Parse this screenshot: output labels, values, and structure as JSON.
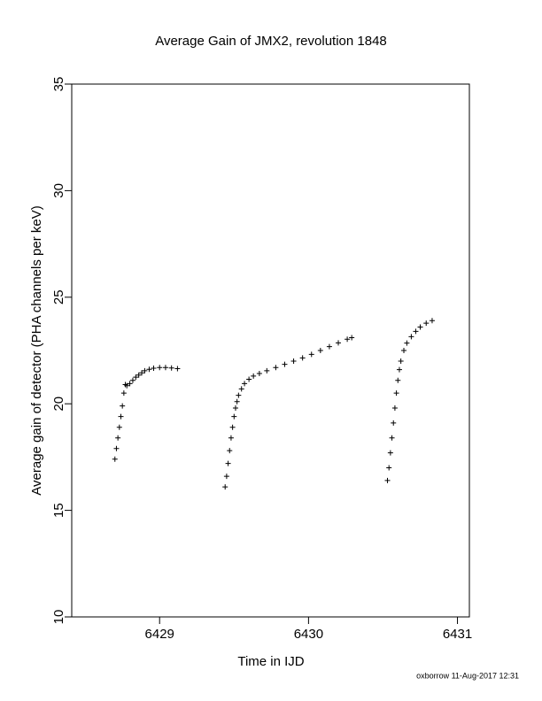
{
  "chart_data": {
    "type": "scatter",
    "title": "Average Gain of JMX2, revolution 1848",
    "x_label": "Time in IJD",
    "y_label": "Average gain of detector (PHA channels per keV)",
    "footer": "oxborrow 11-Aug-2017 12:31",
    "xlim": [
      6428.41,
      6431.08
    ],
    "ylim": [
      10,
      35
    ],
    "xticks": [
      6429,
      6430,
      6431
    ],
    "yticks": [
      10,
      15,
      20,
      25,
      30,
      35
    ],
    "color": "#000000",
    "x": [
      6428.7,
      6428.71,
      6428.72,
      6428.73,
      6428.74,
      6428.75,
      6428.76,
      6428.77,
      6428.78,
      6428.8,
      6428.82,
      6428.84,
      6428.86,
      6428.88,
      6428.9,
      6428.93,
      6428.96,
      6429.0,
      6429.04,
      6429.08,
      6429.12,
      6429.44,
      6429.45,
      6429.46,
      6429.47,
      6429.48,
      6429.49,
      6429.5,
      6429.51,
      6429.52,
      6429.53,
      6429.55,
      6429.57,
      6429.6,
      6429.63,
      6429.67,
      6429.72,
      6429.78,
      6429.84,
      6429.9,
      6429.96,
      6430.02,
      6430.08,
      6430.14,
      6430.2,
      6430.26,
      6430.29,
      6430.53,
      6430.54,
      6430.55,
      6430.56,
      6430.57,
      6430.58,
      6430.59,
      6430.6,
      6430.61,
      6430.62,
      6430.64,
      6430.66,
      6430.69,
      6430.72,
      6430.75,
      6430.79,
      6430.83
    ],
    "values": [
      17.4,
      17.9,
      18.4,
      18.9,
      19.4,
      19.9,
      20.5,
      20.9,
      20.85,
      20.95,
      21.1,
      21.25,
      21.35,
      21.45,
      21.55,
      21.62,
      21.67,
      21.7,
      21.7,
      21.68,
      21.65,
      16.1,
      16.6,
      17.2,
      17.8,
      18.4,
      18.9,
      19.4,
      19.8,
      20.1,
      20.4,
      20.7,
      20.95,
      21.15,
      21.3,
      21.42,
      21.55,
      21.7,
      21.85,
      22.0,
      22.15,
      22.32,
      22.5,
      22.68,
      22.86,
      23.03,
      23.1,
      16.4,
      17.0,
      17.7,
      18.4,
      19.1,
      19.8,
      20.5,
      21.1,
      21.6,
      22.0,
      22.5,
      22.85,
      23.15,
      23.4,
      23.6,
      23.78,
      23.9
    ]
  }
}
